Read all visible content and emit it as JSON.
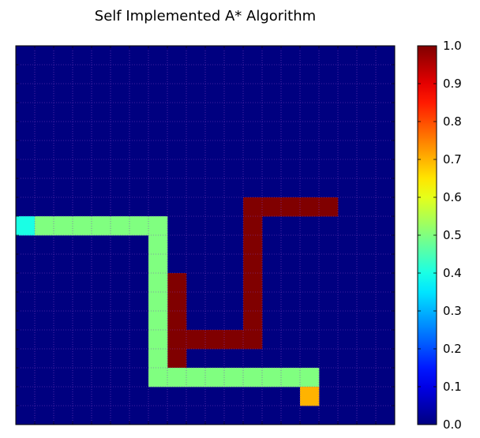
{
  "chart_data": {
    "type": "heatmap",
    "title": "Self Implemented A* Algorithm",
    "rows": 20,
    "cols": 20,
    "colormap": "jet",
    "vmin": 0.0,
    "vmax": 1.0,
    "grid": true,
    "grid_color": "#7f3fbf",
    "cells": [
      {
        "row": 8,
        "col": 12,
        "value": 1.0
      },
      {
        "row": 8,
        "col": 13,
        "value": 1.0
      },
      {
        "row": 8,
        "col": 14,
        "value": 1.0
      },
      {
        "row": 8,
        "col": 15,
        "value": 1.0
      },
      {
        "row": 8,
        "col": 16,
        "value": 1.0
      },
      {
        "row": 9,
        "col": 12,
        "value": 1.0
      },
      {
        "row": 10,
        "col": 12,
        "value": 1.0
      },
      {
        "row": 11,
        "col": 12,
        "value": 1.0
      },
      {
        "row": 12,
        "col": 12,
        "value": 1.0
      },
      {
        "row": 13,
        "col": 12,
        "value": 1.0
      },
      {
        "row": 14,
        "col": 12,
        "value": 1.0
      },
      {
        "row": 15,
        "col": 12,
        "value": 1.0
      },
      {
        "row": 15,
        "col": 11,
        "value": 1.0
      },
      {
        "row": 15,
        "col": 10,
        "value": 1.0
      },
      {
        "row": 15,
        "col": 9,
        "value": 1.0
      },
      {
        "row": 15,
        "col": 8,
        "value": 1.0
      },
      {
        "row": 12,
        "col": 8,
        "value": 1.0
      },
      {
        "row": 13,
        "col": 8,
        "value": 1.0
      },
      {
        "row": 14,
        "col": 8,
        "value": 1.0
      },
      {
        "row": 16,
        "col": 8,
        "value": 1.0
      },
      {
        "row": 9,
        "col": 0,
        "value": 0.4
      },
      {
        "row": 9,
        "col": 1,
        "value": 0.5
      },
      {
        "row": 9,
        "col": 2,
        "value": 0.5
      },
      {
        "row": 9,
        "col": 3,
        "value": 0.5
      },
      {
        "row": 9,
        "col": 4,
        "value": 0.5
      },
      {
        "row": 9,
        "col": 5,
        "value": 0.5
      },
      {
        "row": 9,
        "col": 6,
        "value": 0.5
      },
      {
        "row": 9,
        "col": 7,
        "value": 0.5
      },
      {
        "row": 10,
        "col": 7,
        "value": 0.5
      },
      {
        "row": 11,
        "col": 7,
        "value": 0.5
      },
      {
        "row": 12,
        "col": 7,
        "value": 0.5
      },
      {
        "row": 13,
        "col": 7,
        "value": 0.5
      },
      {
        "row": 14,
        "col": 7,
        "value": 0.5
      },
      {
        "row": 15,
        "col": 7,
        "value": 0.5
      },
      {
        "row": 16,
        "col": 7,
        "value": 0.5
      },
      {
        "row": 17,
        "col": 7,
        "value": 0.5
      },
      {
        "row": 17,
        "col": 8,
        "value": 0.5
      },
      {
        "row": 17,
        "col": 9,
        "value": 0.5
      },
      {
        "row": 17,
        "col": 10,
        "value": 0.5
      },
      {
        "row": 17,
        "col": 11,
        "value": 0.5
      },
      {
        "row": 17,
        "col": 12,
        "value": 0.5
      },
      {
        "row": 17,
        "col": 13,
        "value": 0.5
      },
      {
        "row": 17,
        "col": 14,
        "value": 0.5
      },
      {
        "row": 17,
        "col": 15,
        "value": 0.5
      },
      {
        "row": 18,
        "col": 15,
        "value": 0.7
      }
    ],
    "colorbar": {
      "ticks": [
        0.0,
        0.1,
        0.2,
        0.3,
        0.4,
        0.5,
        0.6,
        0.7,
        0.8,
        0.9,
        1.0
      ],
      "tick_labels": [
        "0.0",
        "0.1",
        "0.2",
        "0.3",
        "0.4",
        "0.5",
        "0.6",
        "0.7",
        "0.8",
        "0.9",
        "1.0"
      ]
    }
  }
}
